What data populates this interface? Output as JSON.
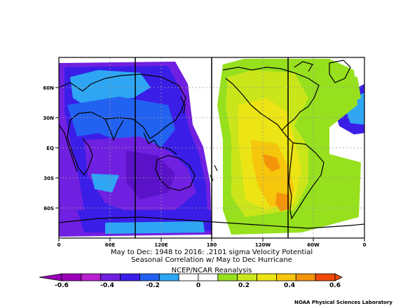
{
  "title": {
    "line1": "May to Dec: 1948 to 2016: .2101 sigma Velocity Potential",
    "line2": "Seasonal Correlation w/ May to Dec Hurricane",
    "line3": "NCEP/NCAR Reanalysis"
  },
  "axes": {
    "x_ticks": [
      "0",
      "60E",
      "120E",
      "180",
      "120W",
      "60W",
      "0"
    ],
    "y_ticks": [
      "60N",
      "30N",
      "EQ",
      "30S",
      "60S"
    ]
  },
  "colorbar": {
    "labels": [
      "-0.6",
      "-0.4",
      "-0.2",
      "0",
      "0.2",
      "0.4",
      "0.6"
    ],
    "colors": [
      "#9a00b8",
      "#b820d0",
      "#7020e0",
      "#3a1ee8",
      "#2262f0",
      "#2ea6f4",
      "#ffffff",
      "#ffffff",
      "#96e01e",
      "#cae61a",
      "#ece414",
      "#f6c60c",
      "#f4940a",
      "#f04a0a"
    ]
  },
  "map_colors": {
    "purple": "#7020e0",
    "deep_purple": "#5a12c8",
    "blue": "#3a1ee8",
    "mid_blue": "#2262f0",
    "cyan": "#2ea6f4",
    "green": "#96e01e",
    "yellow_green": "#cae61a",
    "yellow": "#ece414",
    "gold": "#f6c60c",
    "orange": "#f4940a"
  },
  "credit": "NOAA Physical Sciences Laboratory"
}
